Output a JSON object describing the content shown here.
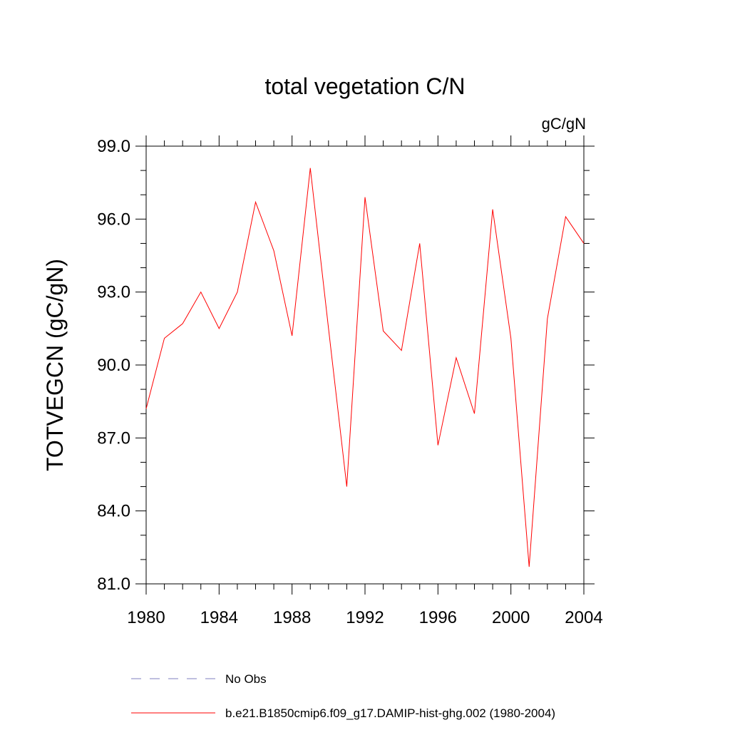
{
  "chart_data": {
    "type": "line",
    "title": "total vegetation C/N",
    "units_label": "gC/gN",
    "ylabel": "TOTVEGCN  (gC/gN)",
    "xlabel": "",
    "xlim": [
      1980,
      2004
    ],
    "ylim": [
      81.0,
      99.0
    ],
    "x_ticks": [
      1980,
      1984,
      1988,
      1992,
      1996,
      2000,
      2004
    ],
    "x_tick_labels": [
      "1980",
      "1984",
      "1988",
      "1992",
      "1996",
      "2000",
      "2004"
    ],
    "y_ticks": [
      81,
      84,
      87,
      90,
      93,
      96,
      99
    ],
    "y_tick_labels": [
      "81.0",
      "84.0",
      "87.0",
      "90.0",
      "93.0",
      "96.0",
      "99.0"
    ],
    "grid": false,
    "legend_position": "bottom",
    "series": [
      {
        "name": "b.e21.B1850cmip6.f09_g17.DAMIP-hist-ghg.002 (1980-2004)",
        "color": "#ff0000",
        "style": "solid",
        "x": [
          1980,
          1981,
          1982,
          1983,
          1984,
          1985,
          1986,
          1987,
          1988,
          1989,
          1990,
          1991,
          1992,
          1993,
          1994,
          1995,
          1996,
          1997,
          1998,
          1999,
          2000,
          2001,
          2002,
          2003,
          2004
        ],
        "values": [
          88.2,
          91.1,
          91.7,
          93.0,
          91.5,
          93.0,
          96.7,
          94.7,
          91.2,
          98.1,
          91.5,
          85.0,
          96.9,
          91.4,
          90.6,
          95.0,
          86.7,
          90.3,
          88.0,
          96.4,
          91.1,
          81.7,
          91.9,
          96.1,
          95.0
        ]
      }
    ],
    "legend": [
      {
        "label": "No Obs",
        "color": "#7f7fbf",
        "style": "dashed"
      },
      {
        "label": "b.e21.B1850cmip6.f09_g17.DAMIP-hist-ghg.002 (1980-2004)",
        "color": "#ff0000",
        "style": "solid"
      }
    ]
  }
}
